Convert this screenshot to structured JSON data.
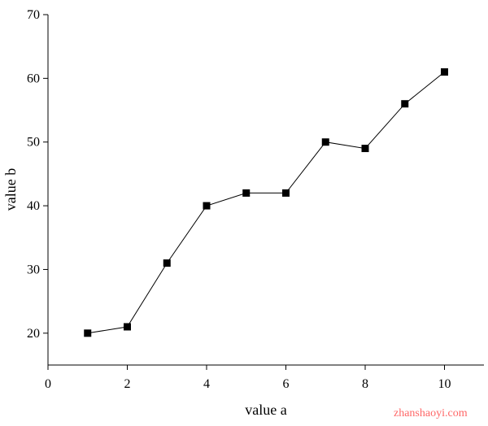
{
  "chart_data": {
    "type": "line",
    "x": [
      1,
      2,
      3,
      4,
      5,
      6,
      7,
      8,
      9,
      10
    ],
    "series": [
      {
        "values": [
          20,
          21,
          31,
          40,
          42,
          42,
          50,
          49,
          56,
          61
        ],
        "marker": "square",
        "color": "#000000"
      }
    ],
    "xlabel": "value a",
    "ylabel": "value b",
    "xlim": [
      0,
      11
    ],
    "ylim": [
      15,
      70
    ],
    "xticks": [
      0,
      2,
      4,
      6,
      8,
      10
    ],
    "yticks": [
      20,
      30,
      40,
      50,
      60,
      70
    ],
    "grid": false,
    "legend": "none"
  },
  "watermark": "zhanshaoyi.com",
  "colors": {
    "axis": "#000000",
    "watermark": "#ff6666"
  }
}
